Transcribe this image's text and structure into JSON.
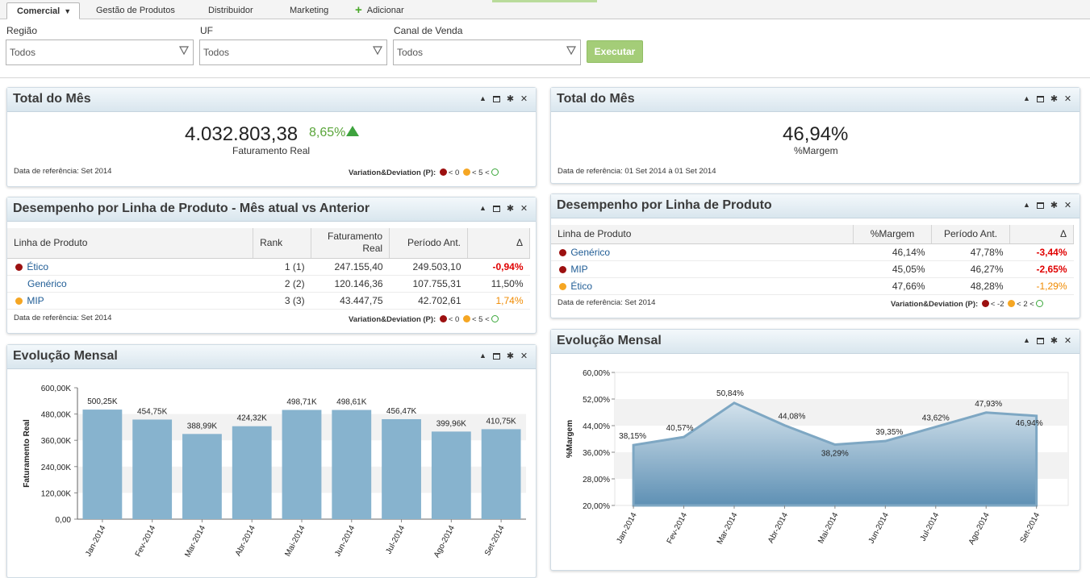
{
  "tabs": [
    {
      "label": "Comercial",
      "active": true
    },
    {
      "label": "Gestão de Produtos"
    },
    {
      "label": "Distribuidor"
    },
    {
      "label": "Marketing"
    },
    {
      "label": "Adicionar"
    }
  ],
  "filters": {
    "regiao": {
      "label": "Região",
      "value": "Todos"
    },
    "uf": {
      "label": "UF",
      "value": "Todos"
    },
    "canal": {
      "label": "Canal de Venda",
      "value": "Todos"
    },
    "execute_label": "Executar"
  },
  "panel_total_left": {
    "title": "Total do Mês",
    "value": "4.032.803,38",
    "variation": "8,65%",
    "subtitle": "Faturamento Real",
    "ref": "Data de referência: Set 2014",
    "legend_label": "Variation&Deviation (P):",
    "legend_1": "< 0",
    "legend_2": "< 5",
    "legend_3": "<"
  },
  "panel_total_right": {
    "title": "Total do Mês",
    "value": "46,94%",
    "subtitle": "%Margem",
    "ref": "Data de referência: 01 Set 2014 à 01 Set 2014"
  },
  "panel_desempenho_left": {
    "title": "Desempenho por Linha de Produto - Mês atual vs Anterior",
    "headers": [
      "Linha de Produto",
      "Rank",
      "Faturamento Real",
      "Período Ant.",
      "Δ"
    ],
    "rows": [
      {
        "produto": "Ético",
        "rank": "1 (1)",
        "fat": "247.155,40",
        "ant": "249.503,10",
        "delta": "-0,94%",
        "status": "red"
      },
      {
        "produto": "Genérico",
        "rank": "2 (2)",
        "fat": "120.146,36",
        "ant": "107.755,31",
        "delta": "11,50%",
        "status": "none"
      },
      {
        "produto": "MIP",
        "rank": "3 (3)",
        "fat": "43.447,75",
        "ant": "42.702,61",
        "delta": "1,74%",
        "status": "orange"
      }
    ],
    "ref": "Data de referência: Set 2014",
    "legend_label": "Variation&Deviation (P):",
    "legend_1": "< 0",
    "legend_2": "< 5",
    "legend_3": "<"
  },
  "panel_desempenho_right": {
    "title": "Desempenho por Linha de Produto",
    "headers": [
      "Linha de Produto",
      "%Margem",
      "Período Ant.",
      "Δ"
    ],
    "rows": [
      {
        "produto": "Genérico",
        "margem": "46,14%",
        "ant": "47,78%",
        "delta": "-3,44%",
        "status": "red"
      },
      {
        "produto": "MIP",
        "margem": "45,05%",
        "ant": "46,27%",
        "delta": "-2,65%",
        "status": "red"
      },
      {
        "produto": "Ético",
        "margem": "47,66%",
        "ant": "48,28%",
        "delta": "-1,29%",
        "status": "orange"
      }
    ],
    "ref": "Data de referência: Set 2014",
    "legend_label": "Variation&Deviation (P):",
    "legend_1": "< -2",
    "legend_2": "< 2",
    "legend_3": "<"
  },
  "panel_evolucao_left": {
    "title": "Evolução Mensal"
  },
  "panel_evolucao_right": {
    "title": "Evolução Mensal"
  },
  "colors": {
    "bar": "#87b3ce",
    "area_top": "#7ea7c3",
    "positive": "#5aa53a",
    "negative": "#e00000",
    "warning": "#f08a00"
  },
  "chart_data": [
    {
      "type": "bar",
      "categories": [
        "Jan-2014",
        "Fev-2014",
        "Mar-2014",
        "Abr-2014",
        "Mai-2014",
        "Jun-2014",
        "Jul-2014",
        "Ago-2014",
        "Set-2014"
      ],
      "values": [
        500.25,
        454.75,
        388.99,
        424.32,
        498.71,
        498.61,
        456.47,
        399.96,
        410.75
      ],
      "value_labels": [
        "500,25K",
        "454,75K",
        "388,99K",
        "424,32K",
        "498,71K",
        "498,61K",
        "456,47K",
        "399,96K",
        "410,75K"
      ],
      "ylabel": "Faturamento Real",
      "ylim": [
        0,
        600
      ],
      "yticks": [
        "0,00",
        "120,00K",
        "240,00K",
        "360,00K",
        "480,00K",
        "600,00K"
      ],
      "grid": true
    },
    {
      "type": "area",
      "categories": [
        "Jan-2014",
        "Fev-2014",
        "Mar-2014",
        "Abr-2014",
        "Mai-2014",
        "Jun-2014",
        "Jul-2014",
        "Ago-2014",
        "Set-2014"
      ],
      "values": [
        38.15,
        40.57,
        50.84,
        44.08,
        38.29,
        39.35,
        43.62,
        47.93,
        46.94
      ],
      "value_labels": [
        "38,15%",
        "40,57%",
        "50,84%",
        "44,08%",
        "38,29%",
        "39,35%",
        "43,62%",
        "47,93%",
        "46,94%"
      ],
      "ylabel": "%Margem",
      "ylim": [
        20,
        60
      ],
      "yticks": [
        "20,00%",
        "28,00%",
        "36,00%",
        "44,00%",
        "52,00%",
        "60,00%"
      ],
      "grid": true
    }
  ]
}
